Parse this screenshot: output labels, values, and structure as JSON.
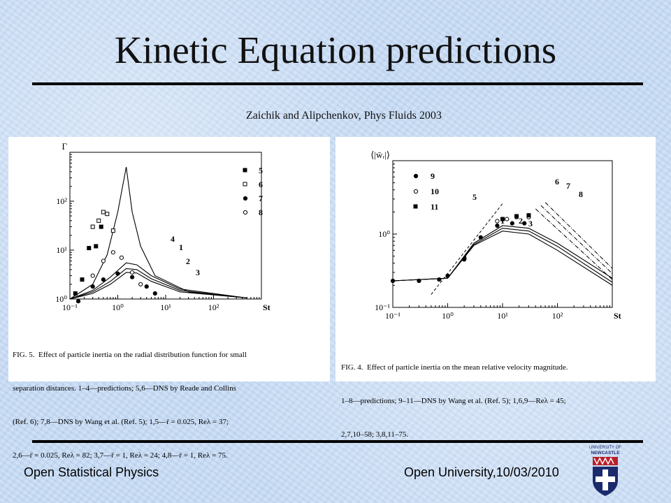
{
  "slide": {
    "title": "Kinetic Equation predictions",
    "citation": "Zaichik and Alipchenkov, Phys Fluids 2003"
  },
  "footer": {
    "left": "Open Statistical Physics",
    "right": "Open University,10/03/2010",
    "logo_text": "UNIVERSITY OF NEWCASTLE"
  },
  "figure_left": {
    "caption_lines": [
      "FIG. 5.  Effect of particle inertia on the radial distribution function for small",
      "separation distances. 1–4—predictions; 5,6—DNS by Reade and Collins",
      "(Ref. 6); 7,8—DNS by Wang et al. (Ref. 5); 1,5—r̄ = 0.025, Reλ = 37;",
      "2,6—r̄ = 0.025, Reλ = 82; 3,7—r̄ = 1, Reλ = 24; 4,8—r̄ = 1, Reλ = 75."
    ]
  },
  "figure_right": {
    "caption_lines": [
      "FIG. 4.  Effect of particle inertia on the mean relative velocity magnitude.",
      "1–8—predictions; 9–11—DNS by Wang et al. (Ref. 5); 1,6,9—Reλ = 45;",
      "2,7,10–58; 3,8,11–75."
    ]
  },
  "chart_data": [
    {
      "type": "line",
      "ylabel": "Γ",
      "xlabel": "St",
      "x_scale": "log",
      "y_scale": "log",
      "xlim": [
        0.1,
        1000
      ],
      "ylim": [
        1,
        1000
      ],
      "x_ticks": [
        "10⁻¹",
        "10⁰",
        "10¹",
        "10²"
      ],
      "y_ticks": [
        "10⁰",
        "10¹",
        "10²"
      ],
      "legend": [
        "5",
        "6",
        "7",
        "8"
      ],
      "curve_labels": [
        "4",
        "1",
        "2",
        "3"
      ],
      "series": [
        {
          "name": "1",
          "x": [
            0.1,
            0.3,
            0.7,
            1.5,
            2.5,
            5,
            20,
            500
          ],
          "y": [
            1.0,
            1.5,
            2.8,
            5.5,
            5.0,
            3.0,
            1.6,
            1.05
          ]
        },
        {
          "name": "2",
          "x": [
            0.1,
            0.3,
            0.7,
            1.5,
            2.5,
            5,
            20,
            500
          ],
          "y": [
            1.0,
            1.4,
            2.3,
            4.2,
            4.0,
            2.6,
            1.5,
            1.05
          ]
        },
        {
          "name": "3",
          "x": [
            0.1,
            0.3,
            0.7,
            1.5,
            2.5,
            5,
            20,
            500
          ],
          "y": [
            1.0,
            1.3,
            2.0,
            3.5,
            3.4,
            2.3,
            1.4,
            1.05
          ]
        },
        {
          "name": "4",
          "x": [
            0.1,
            0.3,
            0.6,
            1.0,
            1.5,
            2,
            3,
            6,
            30,
            500
          ],
          "y": [
            1.0,
            2.0,
            8,
            60,
            500,
            60,
            12,
            3,
            1.4,
            1.05
          ]
        },
        {
          "name": "5",
          "x": [
            0.13,
            0.18,
            0.25,
            0.35,
            0.45
          ],
          "y": [
            1.3,
            2.5,
            11,
            12,
            30
          ]
        },
        {
          "name": "6",
          "x": [
            0.3,
            0.4,
            0.5,
            0.6,
            0.8
          ],
          "y": [
            30,
            40,
            60,
            55,
            25
          ]
        },
        {
          "name": "7",
          "x": [
            0.15,
            0.3,
            0.5,
            1.0,
            2.0,
            4.0,
            6.0
          ],
          "y": [
            0.9,
            1.8,
            2.5,
            3.3,
            2.8,
            1.8,
            1.3
          ]
        },
        {
          "name": "8",
          "x": [
            0.3,
            0.5,
            0.8,
            1.2,
            2.0,
            3.0
          ],
          "y": [
            3.0,
            6.0,
            9.0,
            7.0,
            3.5,
            2.0
          ]
        }
      ]
    },
    {
      "type": "line",
      "ylabel": "⟨|w̄ᵣ|⟩",
      "xlabel": "St",
      "x_scale": "log",
      "y_scale": "log",
      "xlim": [
        0.1,
        1000
      ],
      "ylim": [
        0.1,
        10
      ],
      "x_ticks": [
        "10⁻¹",
        "10⁰",
        "10¹",
        "10²"
      ],
      "y_ticks": [
        "10⁻¹",
        "10⁰"
      ],
      "legend": [
        "9",
        "10",
        "11"
      ],
      "curve_labels": [
        "5",
        "1",
        "2",
        "3",
        "4",
        "6",
        "7",
        "8"
      ],
      "series": [
        {
          "name": "1",
          "x": [
            0.1,
            1,
            3,
            10,
            30,
            100,
            1000
          ],
          "y": [
            0.23,
            0.25,
            0.7,
            1.1,
            1.0,
            0.6,
            0.2
          ]
        },
        {
          "name": "2",
          "x": [
            0.1,
            1,
            3,
            10,
            30,
            100,
            1000
          ],
          "y": [
            0.23,
            0.25,
            0.72,
            1.2,
            1.1,
            0.68,
            0.22
          ]
        },
        {
          "name": "3",
          "x": [
            0.1,
            1,
            3,
            10,
            30,
            100,
            1000
          ],
          "y": [
            0.23,
            0.25,
            0.75,
            1.3,
            1.2,
            0.75,
            0.25
          ]
        },
        {
          "name": "9",
          "x": [
            0.1,
            0.3,
            0.7,
            1,
            2,
            4,
            8,
            15,
            25
          ],
          "y": [
            0.23,
            0.23,
            0.24,
            0.27,
            0.45,
            0.9,
            1.3,
            1.4,
            1.4
          ]
        },
        {
          "name": "10",
          "x": [
            8,
            12,
            18,
            30
          ],
          "y": [
            1.5,
            1.6,
            1.7,
            1.7
          ]
        },
        {
          "name": "11",
          "x": [
            10,
            18,
            30
          ],
          "y": [
            1.6,
            1.75,
            1.8
          ]
        }
      ]
    }
  ]
}
